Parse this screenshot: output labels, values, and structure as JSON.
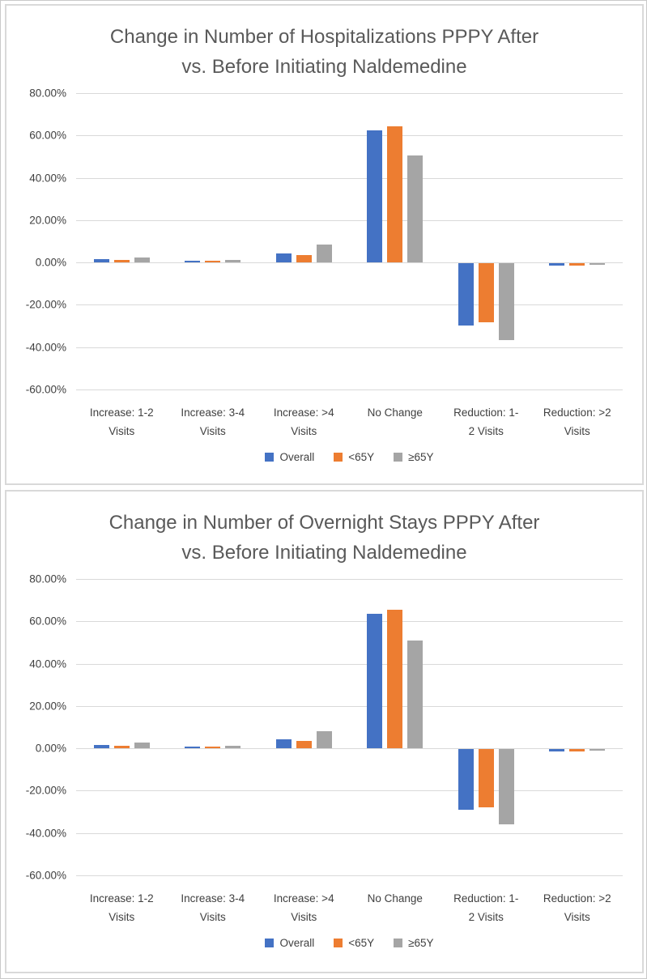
{
  "page": {
    "background": "#ffffff",
    "outer_border_color": "#c9c9c9",
    "panel_border_color": "#d9d9d9"
  },
  "colors": {
    "grid": "#d9d9d9",
    "title_text": "#595959",
    "axis_text": "#404040"
  },
  "chart_data": [
    {
      "type": "bar",
      "title_lines": [
        "Change in Number of Hospitalizations PPPY After",
        "vs. Before Initiating Naldemedine"
      ],
      "title": "Change in Number of Hospitalizations PPPY After vs. Before Initiating Naldemedine",
      "categories": [
        "Increase: 1-2 Visits",
        "Increase: 3-4 Visits",
        "Increase: >4 Visits",
        "No Change",
        "Reduction: 1-2 Visits",
        "Reduction: >2 Visits"
      ],
      "category_label_lines": [
        [
          "Increase: 1-2",
          "Visits"
        ],
        [
          "Increase: 3-4",
          "Visits"
        ],
        [
          "Increase: >4",
          "Visits"
        ],
        [
          "No Change",
          ""
        ],
        [
          "Reduction: 1-",
          "2 Visits"
        ],
        [
          "Reduction: >2",
          "Visits"
        ]
      ],
      "series": [
        {
          "name": "Overall",
          "color": "#4472C4",
          "values": [
            1.6,
            0.8,
            4.4,
            62.5,
            -29.3,
            -1.0
          ]
        },
        {
          "name": "<65Y",
          "color": "#ED7D31",
          "values": [
            1.2,
            0.7,
            3.5,
            64.5,
            -28.0,
            -1.1
          ]
        },
        {
          "name": "≥65Y",
          "color": "#A5A5A5",
          "values": [
            2.5,
            1.1,
            8.3,
            50.5,
            -36.1,
            -0.4
          ]
        }
      ],
      "xlabel": "",
      "ylabel": "",
      "y_axis": {
        "tick_labels": [
          "80.00%",
          "60.00%",
          "40.00%",
          "20.00%",
          "0.00%",
          "-20.00%",
          "-40.00%",
          "-60.00%"
        ],
        "tick_values": [
          80,
          60,
          40,
          20,
          0,
          -20,
          -40,
          -60
        ],
        "ylim": [
          -60,
          80
        ]
      },
      "grid": true,
      "legend": {
        "position": "bottom",
        "entries": [
          "Overall",
          "<65Y",
          "≥65Y"
        ]
      }
    },
    {
      "type": "bar",
      "title_lines": [
        "Change in Number of Overnight Stays PPPY After",
        "vs. Before Initiating Naldemedine"
      ],
      "title": "Change in Number of Overnight Stays PPPY After vs. Before Initiating Naldemedine",
      "categories": [
        "Increase: 1-2 Visits",
        "Increase: 3-4 Visits",
        "Increase: >4 Visits",
        "No Change",
        "Reduction: 1-2 Visits",
        "Reduction: >2 Visits"
      ],
      "category_label_lines": [
        [
          "Increase: 1-2",
          "Visits"
        ],
        [
          "Increase: 3-4",
          "Visits"
        ],
        [
          "Increase: >4",
          "Visits"
        ],
        [
          "No Change",
          ""
        ],
        [
          "Reduction: 1-",
          "2 Visits"
        ],
        [
          "Reduction: >2",
          "Visits"
        ]
      ],
      "series": [
        {
          "name": "Overall",
          "color": "#4472C4",
          "values": [
            1.6,
            0.8,
            4.2,
            63.6,
            -28.7,
            -1.0
          ]
        },
        {
          "name": "<65Y",
          "color": "#ED7D31",
          "values": [
            1.2,
            0.7,
            3.4,
            65.4,
            -27.6,
            -1.1
          ]
        },
        {
          "name": "≥65Y",
          "color": "#A5A5A5",
          "values": [
            2.6,
            1.1,
            8.1,
            51.1,
            -35.5,
            -0.4
          ]
        }
      ],
      "xlabel": "",
      "ylabel": "",
      "y_axis": {
        "tick_labels": [
          "80.00%",
          "60.00%",
          "40.00%",
          "20.00%",
          "0.00%",
          "-20.00%",
          "-40.00%",
          "-60.00%"
        ],
        "tick_values": [
          80,
          60,
          40,
          20,
          0,
          -20,
          -40,
          -60
        ],
        "ylim": [
          -60,
          80
        ]
      },
      "grid": true,
      "legend": {
        "position": "bottom",
        "entries": [
          "Overall",
          "<65Y",
          "≥65Y"
        ]
      }
    }
  ]
}
